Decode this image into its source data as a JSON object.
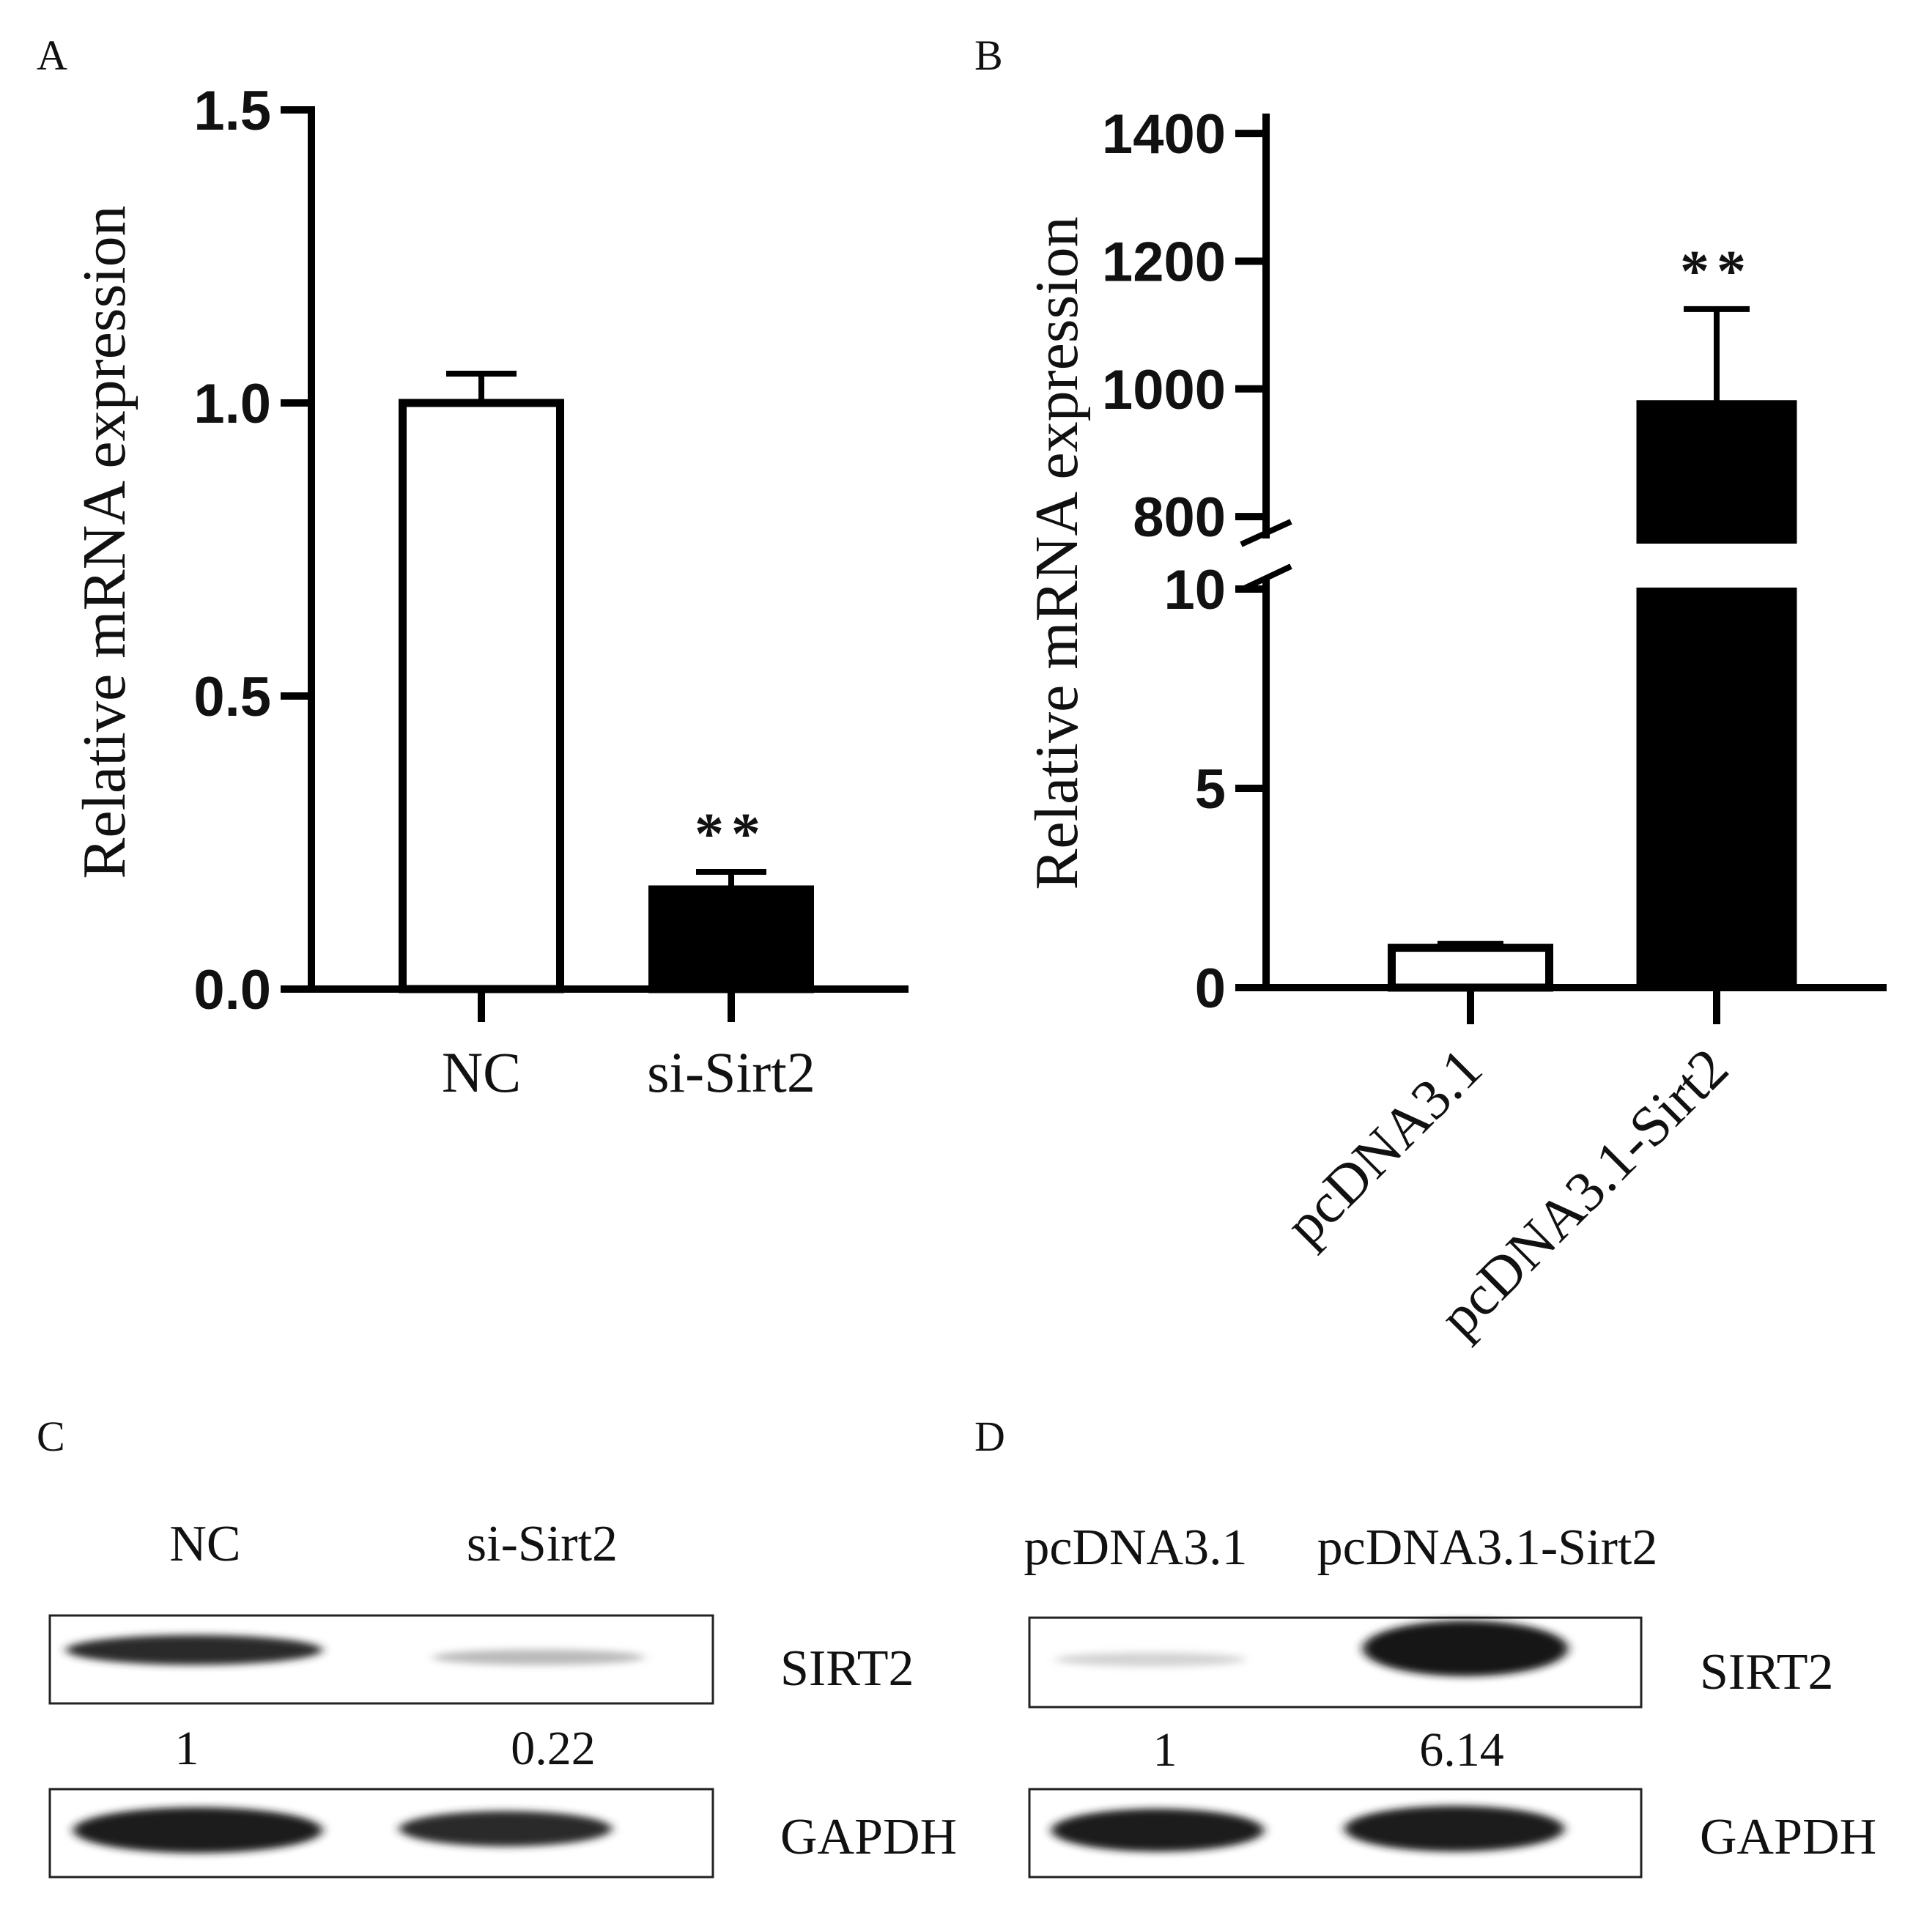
{
  "chart_data": [
    {
      "panel_label": "A",
      "type": "bar",
      "categories": [
        "NC",
        "si-Sirt2"
      ],
      "values": [
        1.0,
        0.17
      ],
      "error": [
        0.05,
        0.03
      ],
      "fills": [
        "#ffffff",
        "#000000"
      ],
      "significance": [
        "",
        "**"
      ],
      "ylabel": "Relative mRNA expression",
      "ylim": [
        0,
        1.5
      ],
      "yticks": [
        "0.0",
        "0.5",
        "1.0",
        "1.5"
      ],
      "grid": false
    },
    {
      "panel_label": "B",
      "type": "bar",
      "categories": [
        "pcDNA3.1",
        "pcDNA3.1-Sirt2"
      ],
      "values": [
        1.0,
        980
      ],
      "error": [
        0.1,
        145
      ],
      "fills": [
        "#ffffff",
        "#000000"
      ],
      "significance": [
        "",
        "**"
      ],
      "ylabel": "Relative mRNA expression",
      "axis_break": {
        "lower_range": [
          0,
          10
        ],
        "upper_range": [
          760,
          1500
        ]
      },
      "yticks_lower": [
        "0",
        "5",
        "10"
      ],
      "yticks_upper": [
        "800",
        "1000",
        "1200",
        "1400"
      ],
      "grid": false
    }
  ],
  "blots": [
    {
      "panel_label": "C",
      "lanes": [
        "NC",
        "si-Sirt2"
      ],
      "rows": [
        {
          "name": "SIRT2",
          "intensity": [
            0.85,
            0.25
          ]
        },
        {
          "name": "GAPDH",
          "intensity": [
            0.95,
            0.85
          ]
        }
      ],
      "quantification": [
        "1",
        "0.22"
      ]
    },
    {
      "panel_label": "D",
      "lanes": [
        "pcDNA3.1",
        "pcDNA3.1-Sirt2"
      ],
      "rows": [
        {
          "name": "SIRT2",
          "intensity": [
            0.12,
            1.0
          ]
        },
        {
          "name": "GAPDH",
          "intensity": [
            0.95,
            0.95
          ]
        }
      ],
      "quantification": [
        "1",
        "6.14"
      ]
    }
  ]
}
